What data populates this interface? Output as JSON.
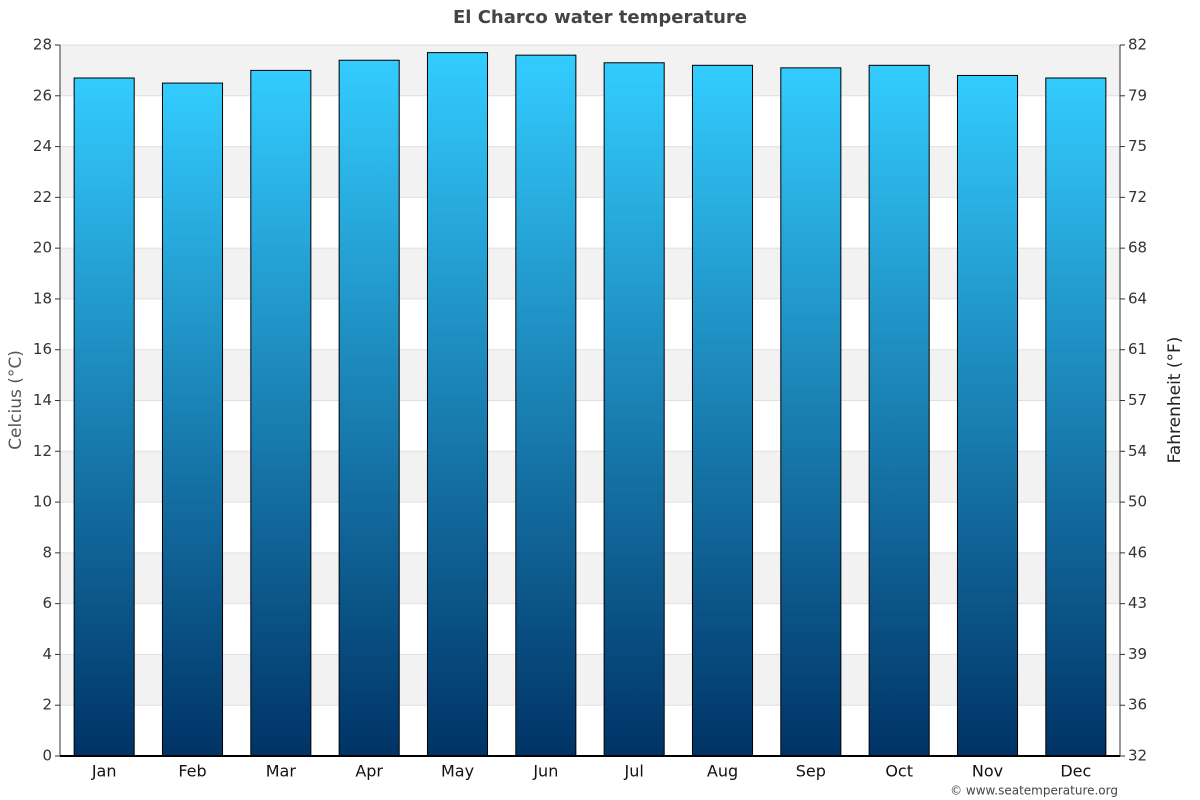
{
  "chart_data": {
    "type": "bar",
    "title": "El Charco water temperature",
    "categories": [
      "Jan",
      "Feb",
      "Mar",
      "Apr",
      "May",
      "Jun",
      "Jul",
      "Aug",
      "Sep",
      "Oct",
      "Nov",
      "Dec"
    ],
    "values": [
      26.7,
      26.5,
      27.0,
      27.4,
      27.7,
      27.6,
      27.3,
      27.2,
      27.1,
      27.2,
      26.8,
      26.7
    ],
    "color": [
      "#33ccff",
      "#003366"
    ],
    "ylabel": "Celcius (°C)",
    "y2label": "Fahrenheit (°F)",
    "ylim": [
      0,
      28
    ],
    "yticks": [
      0,
      2,
      4,
      6,
      8,
      10,
      12,
      14,
      16,
      18,
      20,
      22,
      24,
      26,
      28
    ],
    "y2lim": [
      32,
      82.4
    ],
    "y2ticks": [
      32,
      {
        "value": 35.6,
        "label": "36"
      },
      {
        "value": 39.2,
        "label": "39"
      },
      {
        "value": 42.8,
        "label": "43"
      },
      {
        "value": 46.4,
        "label": "46"
      },
      50,
      {
        "value": 53.6,
        "label": "54"
      },
      {
        "value": 57.2,
        "label": "57"
      },
      {
        "value": 60.8,
        "label": "61"
      },
      {
        "value": 64.4,
        "label": "64"
      },
      68,
      {
        "value": 71.6,
        "label": "72"
      },
      {
        "value": 75.2,
        "label": "75"
      },
      {
        "value": 78.8,
        "label": "79"
      },
      {
        "value": 82.4,
        "label": "82"
      }
    ],
    "grid": true,
    "credit": "© www.seatemperature.org"
  }
}
